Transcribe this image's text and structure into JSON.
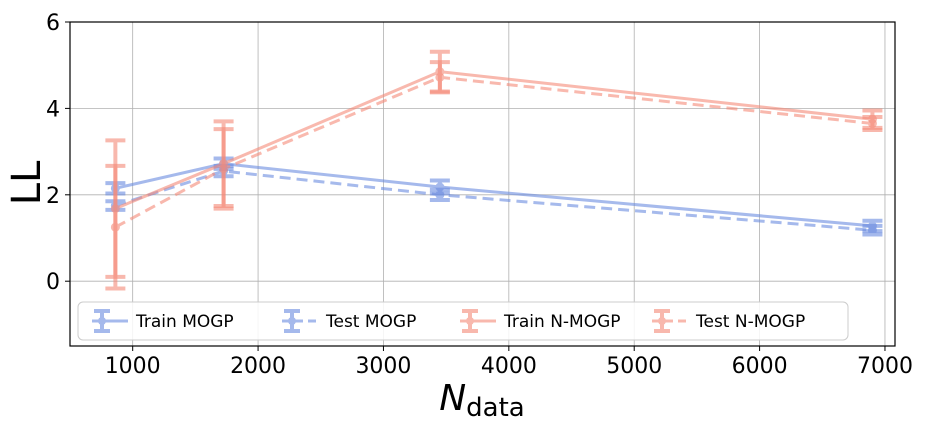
{
  "chart_data": {
    "type": "line",
    "title": "",
    "xlabel": "N",
    "xlabel_sub": "data",
    "ylabel": "LL",
    "xlim": [
      500,
      7080
    ],
    "ylim": [
      -1.5,
      6
    ],
    "xticks": [
      1000,
      2000,
      3000,
      4000,
      5000,
      6000,
      7000
    ],
    "xtick_labels": [
      "1000",
      "2000",
      "3000",
      "4000",
      "5000",
      "6000",
      "7000"
    ],
    "yticks": [
      0,
      2,
      4,
      6
    ],
    "ytick_labels": [
      "0",
      "2",
      "4",
      "6"
    ],
    "grid": true,
    "legend_position": "bottom",
    "series": [
      {
        "name": "Train MOGP",
        "color": "#6b8ce0",
        "dash": "solid",
        "x": [
          862,
          1725,
          3450,
          6900
        ],
        "y": [
          2.15,
          2.72,
          2.18,
          1.28
        ],
        "err": [
          0.12,
          0.12,
          0.15,
          0.12
        ]
      },
      {
        "name": "Test MOGP",
        "color": "#6b8ce0",
        "dash": "dashed",
        "x": [
          862,
          1725,
          3450,
          6900
        ],
        "y": [
          1.75,
          2.55,
          2.0,
          1.18
        ],
        "err": [
          0.1,
          0.12,
          0.12,
          0.1
        ]
      },
      {
        "name": "Train N-MOGP",
        "color": "#f58a78",
        "dash": "solid",
        "x": [
          862,
          1725,
          3450,
          6900
        ],
        "y": [
          1.68,
          2.72,
          4.85,
          3.75
        ],
        "err": [
          1.58,
          0.98,
          0.46,
          0.2
        ]
      },
      {
        "name": "Test N-MOGP",
        "color": "#f58a78",
        "dash": "dashed",
        "x": [
          862,
          1725,
          3450,
          6900
        ],
        "y": [
          1.25,
          2.6,
          4.72,
          3.65
        ],
        "err": [
          1.42,
          0.92,
          0.35,
          0.15
        ]
      }
    ]
  }
}
